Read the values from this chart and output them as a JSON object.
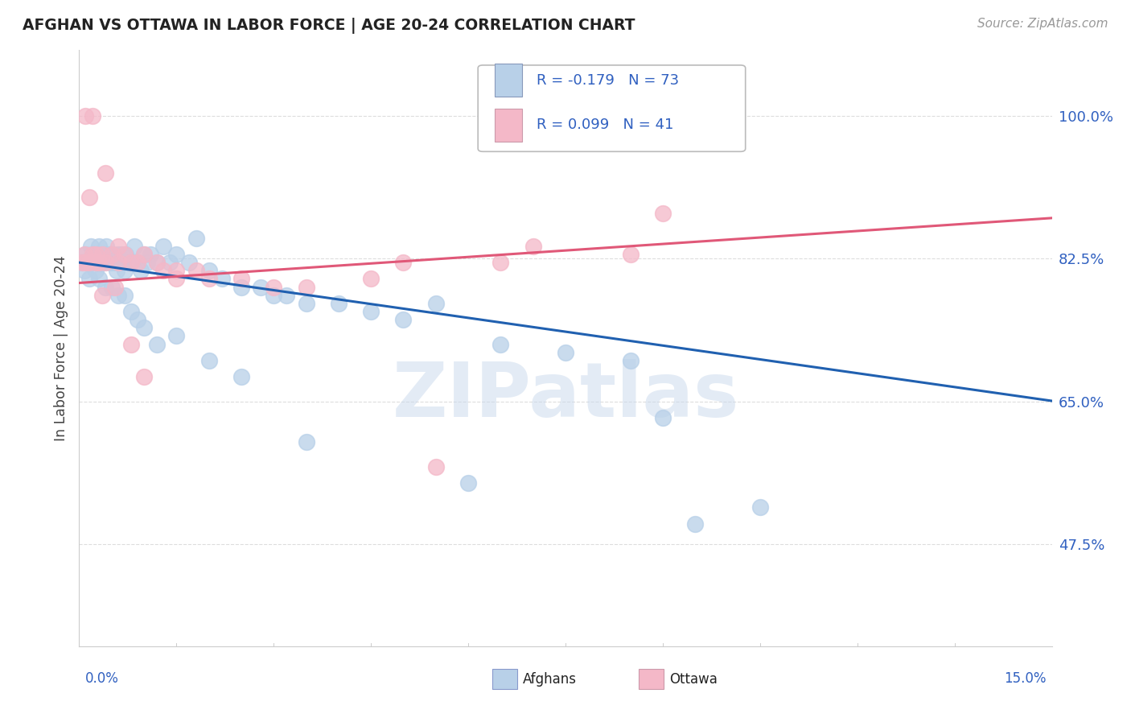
{
  "title": "AFGHAN VS OTTAWA IN LABOR FORCE | AGE 20-24 CORRELATION CHART",
  "source": "Source: ZipAtlas.com",
  "watermark": "ZIPatlas",
  "legend_r1": "-0.179",
  "legend_n1": "73",
  "legend_r2": "0.099",
  "legend_n2": "41",
  "blue_color": "#b8d0e8",
  "pink_color": "#f4b8c8",
  "blue_line_color": "#2060b0",
  "pink_line_color": "#e05878",
  "label_color": "#3060c0",
  "title_color": "#222222",
  "source_color": "#999999",
  "background_color": "#ffffff",
  "grid_color": "#dddddd",
  "xlim": [
    0.0,
    15.0
  ],
  "ylim": [
    35.0,
    108.0
  ],
  "yticks": [
    47.5,
    65.0,
    82.5,
    100.0
  ],
  "af_x": [
    0.05,
    0.08,
    0.1,
    0.12,
    0.15,
    0.18,
    0.2,
    0.22,
    0.25,
    0.28,
    0.3,
    0.32,
    0.35,
    0.38,
    0.4,
    0.42,
    0.45,
    0.48,
    0.5,
    0.52,
    0.55,
    0.58,
    0.6,
    0.62,
    0.65,
    0.68,
    0.7,
    0.72,
    0.75,
    0.8,
    0.85,
    0.9,
    0.95,
    1.0,
    1.05,
    1.1,
    1.2,
    1.3,
    1.4,
    1.5,
    1.7,
    1.8,
    2.0,
    2.2,
    2.5,
    2.8,
    3.0,
    3.2,
    3.5,
    4.0,
    4.5,
    5.0,
    5.5,
    6.5,
    7.5,
    8.5,
    9.0,
    0.3,
    0.4,
    0.5,
    0.6,
    0.7,
    0.8,
    0.9,
    1.0,
    1.2,
    1.5,
    2.0,
    2.5,
    3.5,
    6.0,
    9.5,
    10.5
  ],
  "af_y": [
    82,
    81,
    83,
    82,
    80,
    84,
    83,
    82,
    81,
    83,
    84,
    83,
    82,
    83,
    82,
    84,
    83,
    82,
    82,
    83,
    82,
    81,
    83,
    82,
    83,
    82,
    81,
    83,
    82,
    82,
    84,
    82,
    81,
    83,
    82,
    83,
    82,
    84,
    82,
    83,
    82,
    85,
    81,
    80,
    79,
    79,
    78,
    78,
    77,
    77,
    76,
    75,
    77,
    72,
    71,
    70,
    63,
    80,
    79,
    79,
    78,
    78,
    76,
    75,
    74,
    72,
    73,
    70,
    68,
    60,
    55,
    50,
    52
  ],
  "ot_x": [
    0.05,
    0.08,
    0.1,
    0.15,
    0.2,
    0.25,
    0.3,
    0.35,
    0.4,
    0.5,
    0.6,
    0.7,
    0.8,
    0.9,
    1.0,
    1.2,
    1.5,
    1.8,
    2.5,
    3.5,
    5.0,
    7.0,
    9.0,
    0.1,
    0.2,
    0.4,
    0.6,
    0.8,
    1.0,
    1.5,
    2.0,
    3.0,
    4.5,
    6.5,
    8.5,
    0.15,
    0.25,
    0.35,
    0.55,
    1.3,
    5.5
  ],
  "ot_y": [
    82,
    83,
    82,
    82,
    83,
    82,
    82,
    83,
    82,
    83,
    82,
    83,
    82,
    82,
    83,
    82,
    81,
    81,
    80,
    79,
    82,
    84,
    88,
    100,
    100,
    93,
    84,
    72,
    68,
    80,
    80,
    79,
    80,
    82,
    83,
    90,
    83,
    78,
    79,
    81,
    57
  ]
}
